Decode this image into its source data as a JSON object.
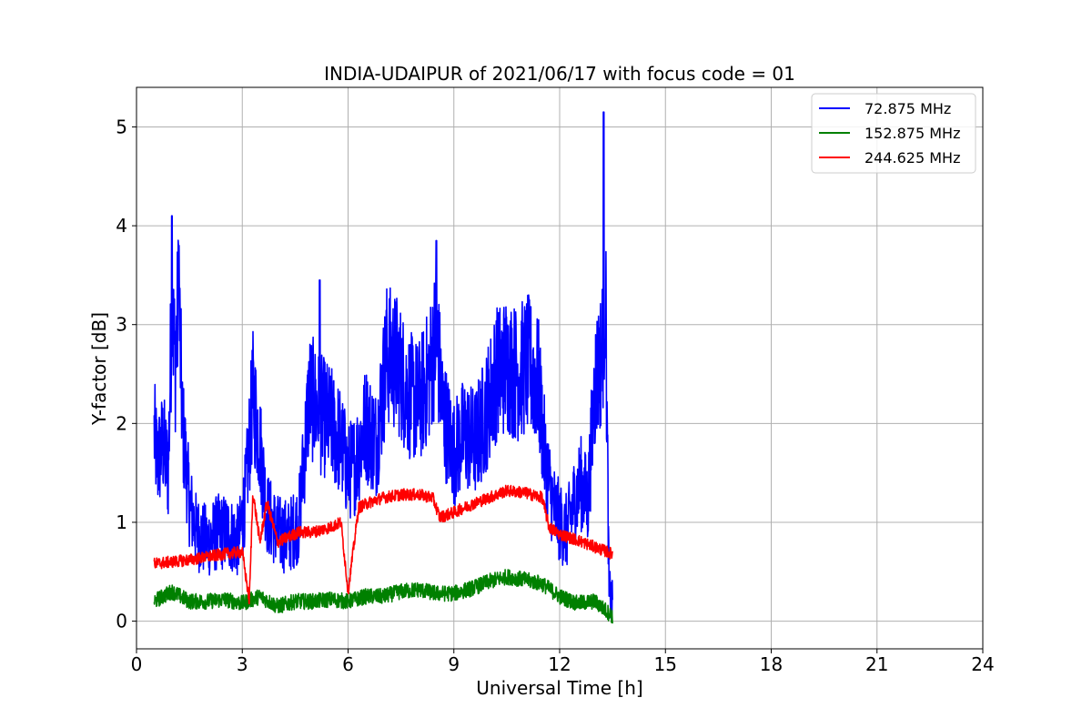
{
  "chart_data": {
    "type": "line",
    "title": "INDIA-UDAIPUR of 2021/06/17 with focus code = 01",
    "xlabel": "Universal Time [h]",
    "ylabel": "Y-factor [dB]",
    "xlim": [
      0,
      24
    ],
    "ylim": [
      -0.28,
      5.4
    ],
    "xticks": [
      0,
      3,
      6,
      9,
      12,
      15,
      18,
      21,
      24
    ],
    "xtick_labels": [
      "0",
      "3",
      "6",
      "9",
      "12",
      "15",
      "18",
      "21",
      "24"
    ],
    "yticks": [
      0,
      1,
      2,
      3,
      4,
      5
    ],
    "ytick_labels": [
      "0",
      "1",
      "2",
      "3",
      "4",
      "5"
    ],
    "grid": true,
    "legend_position": "top-right",
    "series": [
      {
        "name": " 72.875 MHz",
        "color": "#0000ff",
        "x": [
          0.5,
          0.6,
          0.75,
          0.9,
          1.0,
          1.1,
          1.2,
          1.3,
          1.5,
          1.7,
          2.0,
          2.3,
          2.6,
          2.9,
          3.1,
          3.3,
          3.5,
          3.7,
          4.0,
          4.3,
          4.6,
          4.9,
          5.2,
          5.5,
          5.8,
          6.0,
          6.2,
          6.5,
          6.8,
          7.1,
          7.4,
          7.7,
          8.0,
          8.3,
          8.5,
          8.7,
          9.0,
          9.3,
          9.6,
          9.9,
          10.2,
          10.5,
          10.8,
          11.1,
          11.4,
          11.6,
          11.8,
          12.0,
          12.2,
          12.4,
          12.6,
          12.8,
          13.0,
          13.2,
          13.3,
          13.4,
          13.5
        ],
        "y": [
          1.9,
          1.6,
          1.8,
          1.5,
          3.2,
          2.6,
          3.3,
          2.0,
          1.2,
          0.9,
          0.8,
          0.9,
          0.9,
          0.8,
          1.3,
          2.3,
          1.8,
          1.1,
          0.9,
          0.85,
          1.0,
          2.3,
          2.1,
          2.0,
          1.8,
          1.5,
          1.6,
          2.0,
          1.8,
          2.7,
          2.6,
          2.3,
          2.2,
          2.5,
          2.9,
          2.1,
          1.7,
          1.9,
          1.8,
          2.1,
          2.5,
          2.6,
          2.5,
          2.6,
          2.4,
          1.6,
          1.2,
          1.0,
          0.9,
          1.2,
          1.4,
          1.2,
          2.4,
          2.7,
          3.4,
          0.3,
          0.15
        ],
        "annotated_peaks": [
          [
            1.0,
            4.1
          ],
          [
            1.2,
            3.8
          ],
          [
            5.2,
            3.45
          ],
          [
            8.5,
            3.85
          ],
          [
            13.25,
            5.15
          ]
        ]
      },
      {
        "name": "152.875 MHz",
        "color": "#008000",
        "x": [
          0.5,
          1.0,
          1.5,
          2.0,
          2.5,
          3.0,
          3.5,
          4.0,
          4.5,
          5.0,
          5.5,
          6.0,
          6.5,
          7.0,
          7.5,
          8.0,
          8.5,
          9.0,
          9.5,
          10.0,
          10.5,
          11.0,
          11.5,
          12.0,
          12.5,
          13.0,
          13.5
        ],
        "y": [
          0.2,
          0.3,
          0.2,
          0.2,
          0.22,
          0.18,
          0.25,
          0.15,
          0.2,
          0.2,
          0.22,
          0.2,
          0.25,
          0.25,
          0.3,
          0.32,
          0.28,
          0.28,
          0.33,
          0.4,
          0.45,
          0.42,
          0.38,
          0.25,
          0.18,
          0.2,
          0.05
        ]
      },
      {
        "name": "244.625 MHz",
        "color": "#ff0000",
        "x": [
          0.5,
          1.0,
          1.5,
          2.0,
          2.5,
          3.0,
          3.2,
          3.3,
          3.5,
          3.7,
          4.0,
          4.3,
          4.6,
          5.0,
          5.5,
          5.8,
          6.0,
          6.3,
          6.6,
          7.0,
          7.5,
          8.0,
          8.4,
          8.6,
          9.0,
          9.5,
          10.0,
          10.5,
          11.0,
          11.5,
          11.7,
          12.0,
          12.5,
          13.0,
          13.5
        ],
        "y": [
          0.58,
          0.6,
          0.62,
          0.65,
          0.68,
          0.7,
          0.2,
          1.3,
          0.8,
          1.2,
          0.8,
          0.85,
          0.9,
          0.9,
          0.95,
          1.0,
          0.3,
          1.15,
          1.2,
          1.25,
          1.28,
          1.28,
          1.25,
          1.05,
          1.1,
          1.18,
          1.25,
          1.32,
          1.3,
          1.25,
          0.95,
          0.88,
          0.82,
          0.75,
          0.68
        ]
      }
    ]
  }
}
